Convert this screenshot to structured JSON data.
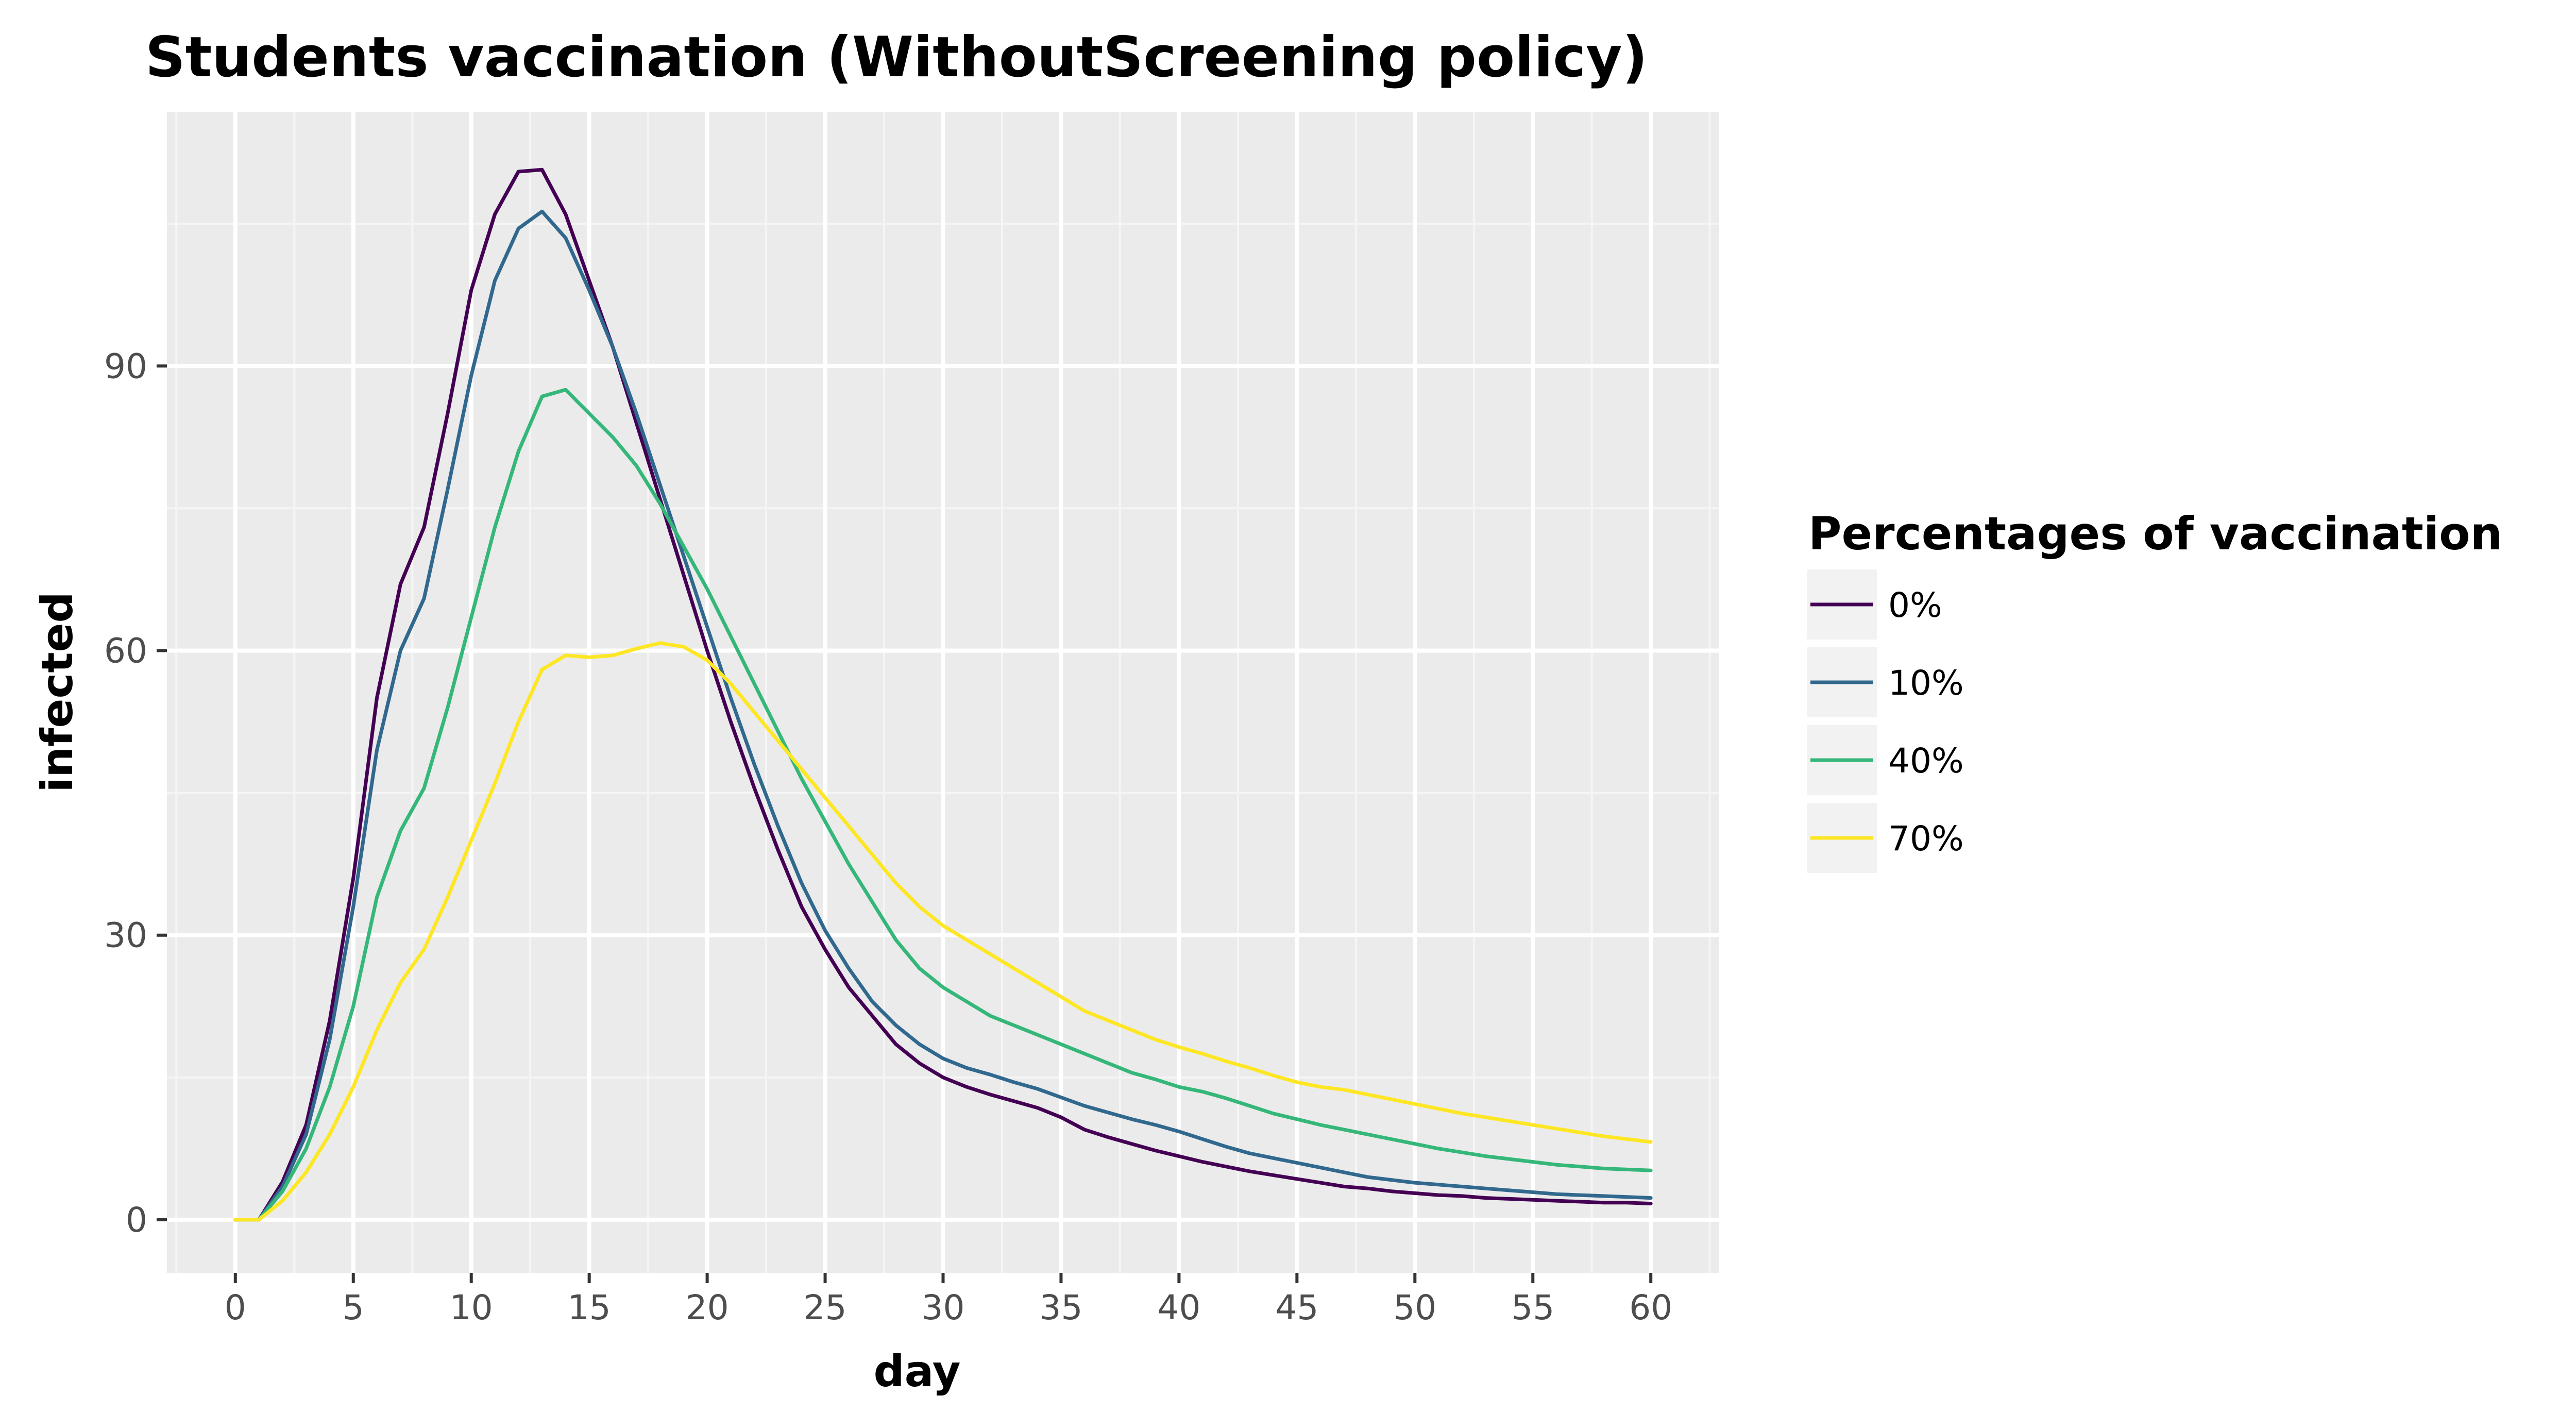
{
  "chart_data": {
    "type": "line",
    "title": "Students vaccination (WithoutScreening policy)",
    "xlabel": "day",
    "ylabel": "infected",
    "xlim": [
      -2.9,
      62.9
    ],
    "ylim": [
      -5.6,
      116.8
    ],
    "x_ticks": [
      0,
      5,
      10,
      15,
      20,
      25,
      30,
      35,
      40,
      45,
      50,
      55,
      60
    ],
    "x_tick_labels": [
      "0",
      "5",
      "10",
      "15",
      "20",
      "25",
      "30",
      "35",
      "40",
      "45",
      "50",
      "55",
      "60"
    ],
    "y_ticks": [
      0,
      30,
      60,
      90
    ],
    "y_tick_labels": [
      "0",
      "30",
      "60",
      "90"
    ],
    "grid": true,
    "legend": {
      "title": "Percentages of vaccination",
      "position": "right"
    },
    "x": [
      0,
      1,
      2,
      3,
      4,
      5,
      6,
      7,
      8,
      9,
      10,
      11,
      12,
      13,
      14,
      15,
      16,
      17,
      18,
      19,
      20,
      21,
      22,
      23,
      24,
      25,
      26,
      27,
      28,
      29,
      30,
      31,
      32,
      33,
      34,
      35,
      36,
      37,
      38,
      39,
      40,
      41,
      42,
      43,
      44,
      45,
      46,
      47,
      48,
      49,
      50,
      51,
      52,
      53,
      54,
      55,
      56,
      57,
      58,
      59,
      60
    ],
    "series": [
      {
        "name": "0%",
        "color": "#440154",
        "values": [
          0,
          0,
          4,
          10,
          21,
          36,
          55,
          67,
          73,
          85,
          98,
          106,
          110.5,
          110.7,
          106,
          99,
          92,
          84,
          76,
          68,
          60,
          52.5,
          45.5,
          39,
          33,
          28.5,
          24.5,
          21.5,
          18.5,
          16.5,
          15,
          14,
          13.2,
          12.5,
          11.8,
          10.8,
          9.5,
          8.7,
          8,
          7.3,
          6.7,
          6.1,
          5.6,
          5.1,
          4.7,
          4.3,
          3.9,
          3.5,
          3.3,
          3,
          2.8,
          2.6,
          2.5,
          2.3,
          2.2,
          2.1,
          2,
          1.9,
          1.8,
          1.8,
          1.7
        ]
      },
      {
        "name": "10%",
        "color": "#31688E",
        "values": [
          0,
          0,
          3.5,
          9,
          19,
          33,
          49.5,
          60,
          65.5,
          77,
          89,
          99,
          104.5,
          106.3,
          103.5,
          98,
          92,
          85,
          77.5,
          70,
          62.5,
          55,
          48,
          41.5,
          35.5,
          30.5,
          26.5,
          23,
          20.5,
          18.5,
          17,
          16,
          15.3,
          14.5,
          13.8,
          12.9,
          12,
          11.3,
          10.6,
          10,
          9.3,
          8.5,
          7.7,
          7,
          6.5,
          6,
          5.5,
          5,
          4.5,
          4.2,
          3.9,
          3.7,
          3.5,
          3.3,
          3.1,
          2.9,
          2.7,
          2.6,
          2.5,
          2.4,
          2.3
        ]
      },
      {
        "name": "40%",
        "color": "#35B779",
        "values": [
          0,
          0,
          3,
          7.5,
          14,
          22.5,
          34,
          41,
          45.5,
          54,
          63.5,
          73,
          81,
          86.8,
          87.5,
          85,
          82.5,
          79.5,
          75.5,
          71,
          66.5,
          61.5,
          56.5,
          51.5,
          46.5,
          42,
          37.5,
          33.5,
          29.5,
          26.5,
          24.5,
          23,
          21.5,
          20.5,
          19.5,
          18.5,
          17.5,
          16.5,
          15.5,
          14.8,
          14,
          13.5,
          12.8,
          12,
          11.2,
          10.6,
          10,
          9.5,
          9,
          8.5,
          8,
          7.5,
          7.1,
          6.7,
          6.4,
          6.1,
          5.8,
          5.6,
          5.4,
          5.3,
          5.2
        ]
      },
      {
        "name": "70%",
        "color": "#FDE725",
        "values": [
          0,
          0,
          2,
          5,
          9,
          14,
          20,
          25,
          28.5,
          34,
          40,
          46,
          52.5,
          58,
          59.5,
          59.3,
          59.5,
          60.2,
          60.8,
          60.4,
          59,
          56.5,
          53.5,
          50.5,
          47.5,
          44.5,
          41.5,
          38.5,
          35.5,
          33,
          31,
          29.5,
          28,
          26.5,
          25,
          23.5,
          22,
          21,
          20,
          19,
          18.2,
          17.5,
          16.7,
          16,
          15.2,
          14.5,
          14,
          13.7,
          13.2,
          12.7,
          12.2,
          11.7,
          11.2,
          10.8,
          10.4,
          10,
          9.6,
          9.2,
          8.8,
          8.5,
          8.2
        ]
      }
    ]
  }
}
